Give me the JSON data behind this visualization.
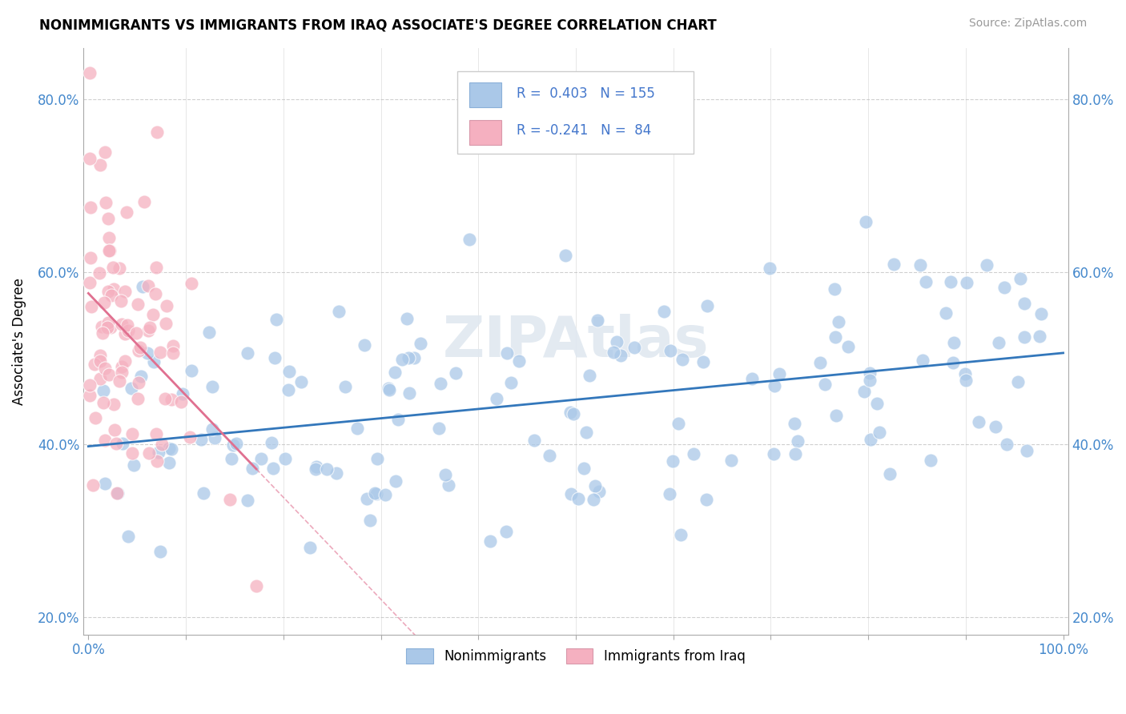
{
  "title": "NONIMMIGRANTS VS IMMIGRANTS FROM IRAQ ASSOCIATE'S DEGREE CORRELATION CHART",
  "source": "Source: ZipAtlas.com",
  "ylabel": "Associate's Degree",
  "x_min": 0.0,
  "x_max": 1.0,
  "y_min": 0.18,
  "y_max": 0.86,
  "r_blue": 0.403,
  "n_blue": 155,
  "r_pink": -0.241,
  "n_pink": 84,
  "blue_color": "#aac8e8",
  "pink_color": "#f5b0c0",
  "trend_blue": "#3377bb",
  "trend_pink": "#e07090",
  "background": "#ffffff",
  "grid_color": "#bbbbbb",
  "seed_blue": 42,
  "seed_pink": 7,
  "legend_r_color": "#4477cc",
  "legend_n_color": "#4477cc",
  "watermark": "ZIPAtlas",
  "watermark_color": "#e0e8f0"
}
